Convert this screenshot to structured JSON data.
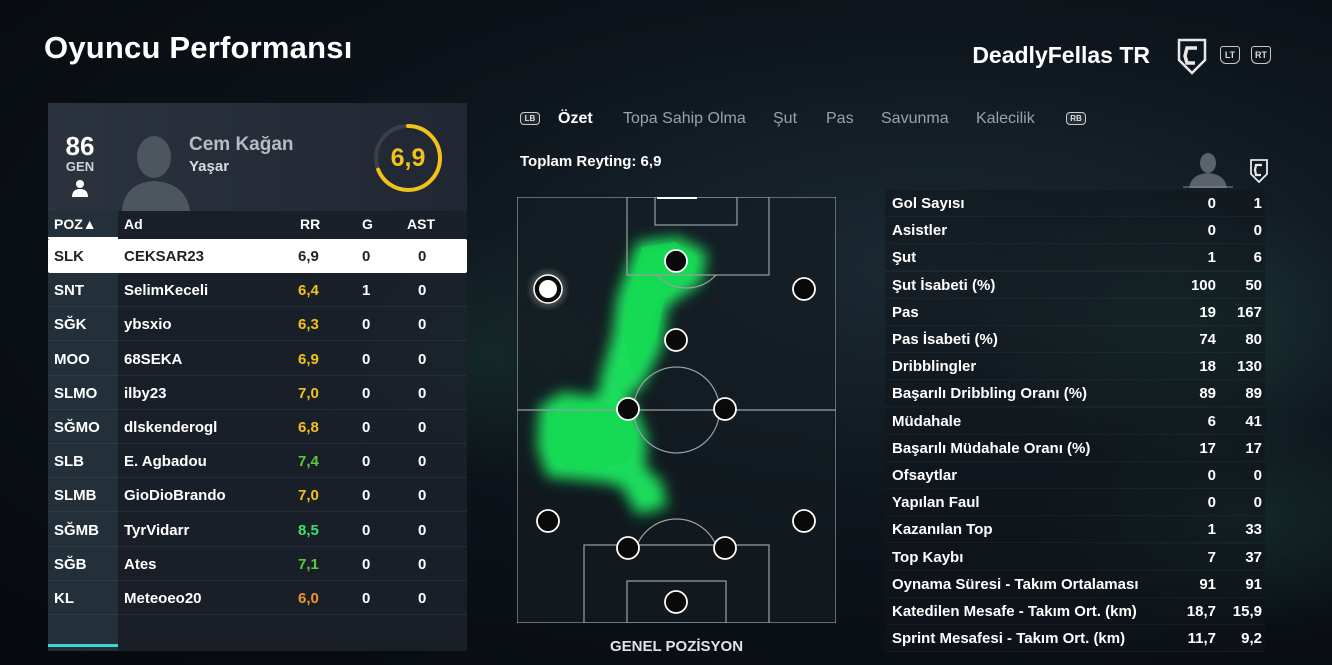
{
  "header": {
    "title": "Oyuncu Performansı",
    "team_name": "DeadlyFellas TR",
    "lt_label": "LT",
    "rt_label": "RT"
  },
  "player": {
    "overall": "86",
    "overall_label": "GEN",
    "first_name": "Cem Kağan",
    "last_name": "Yaşar",
    "rating": "6,9",
    "rating_fraction": 0.69
  },
  "table": {
    "headers": {
      "pos": "POZ▲",
      "name": "Ad",
      "rr": "RR",
      "g": "G",
      "ast": "AST"
    },
    "rows": [
      {
        "pos": "SLK",
        "name": "CEKSAR23",
        "rr": "6,9",
        "g": "0",
        "ast": "0",
        "color": "#222222"
      },
      {
        "pos": "SNT",
        "name": "SelimKeceli",
        "rr": "6,4",
        "g": "1",
        "ast": "0",
        "color": "#f2c21b"
      },
      {
        "pos": "SĞK",
        "name": "ybsxio",
        "rr": "6,3",
        "g": "0",
        "ast": "0",
        "color": "#f2c21b"
      },
      {
        "pos": "MOO",
        "name": "68SEKA",
        "rr": "6,9",
        "g": "0",
        "ast": "0",
        "color": "#f2c21b"
      },
      {
        "pos": "SLMO",
        "name": "ilby23",
        "rr": "7,0",
        "g": "0",
        "ast": "0",
        "color": "#f2c21b"
      },
      {
        "pos": "SĞMO",
        "name": "dlskenderogl",
        "rr": "6,8",
        "g": "0",
        "ast": "0",
        "color": "#f2c21b"
      },
      {
        "pos": "SLB",
        "name": "E. Agbadou",
        "rr": "7,4",
        "g": "0",
        "ast": "0",
        "color": "#5ec83f"
      },
      {
        "pos": "SLMB",
        "name": "GioDioBrando",
        "rr": "7,0",
        "g": "0",
        "ast": "0",
        "color": "#f2c21b"
      },
      {
        "pos": "SĞMB",
        "name": "TyrVidarr",
        "rr": "8,5",
        "g": "0",
        "ast": "0",
        "color": "#3ee06a"
      },
      {
        "pos": "SĞB",
        "name": "Ates",
        "rr": "7,1",
        "g": "0",
        "ast": "0",
        "color": "#5ec83f"
      },
      {
        "pos": "KL",
        "name": "Meteoeo20",
        "rr": "6,0",
        "g": "0",
        "ast": "0",
        "color": "#f0952a"
      }
    ]
  },
  "tabs": {
    "lb": "LB",
    "rb": "RB",
    "items": [
      "Özet",
      "Topa Sahip Olma",
      "Şut",
      "Pas",
      "Savunma",
      "Kalecilik"
    ],
    "active": "Özet"
  },
  "total_rating_label": "Toplam Reyting: 6,9",
  "pitch_label": "GENEL POZİSYON",
  "stats": [
    {
      "label": "Gol Sayısı",
      "player": "0",
      "team": "1"
    },
    {
      "label": "Asistler",
      "player": "0",
      "team": "0"
    },
    {
      "label": "Şut",
      "player": "1",
      "team": "6"
    },
    {
      "label": "Şut İsabeti (%)",
      "player": "100",
      "team": "50"
    },
    {
      "label": "Pas",
      "player": "19",
      "team": "167"
    },
    {
      "label": "Pas İsabeti (%)",
      "player": "74",
      "team": "80"
    },
    {
      "label": "Dribblingler",
      "player": "18",
      "team": "130"
    },
    {
      "label": "Başarılı Dribbling Oranı (%)",
      "player": "89",
      "team": "89"
    },
    {
      "label": "Müdahale",
      "player": "6",
      "team": "41"
    },
    {
      "label": "Başarılı Müdahale Oranı (%)",
      "player": "17",
      "team": "17"
    },
    {
      "label": "Ofsaytlar",
      "player": "0",
      "team": "0"
    },
    {
      "label": "Yapılan Faul",
      "player": "0",
      "team": "0"
    },
    {
      "label": "Kazanılan Top",
      "player": "1",
      "team": "33"
    },
    {
      "label": "Top Kaybı",
      "player": "7",
      "team": "37"
    },
    {
      "label": "Oynama Süresi - Takım Ortalaması",
      "player": "91",
      "team": "91"
    },
    {
      "label": "Katedilen Mesafe - Takım Ort. (km)",
      "player": "18,7",
      "team": "15,9"
    },
    {
      "label": "Sprint Mesafesi - Takım Ort. (km)",
      "player": "11,7",
      "team": "9,2"
    }
  ],
  "colors": {
    "rating_yellow": "#f2c21b",
    "rating_green": "#3ee06a",
    "heatmap_green": "#1ee860",
    "accent_cyan": "#3fd6d0"
  }
}
